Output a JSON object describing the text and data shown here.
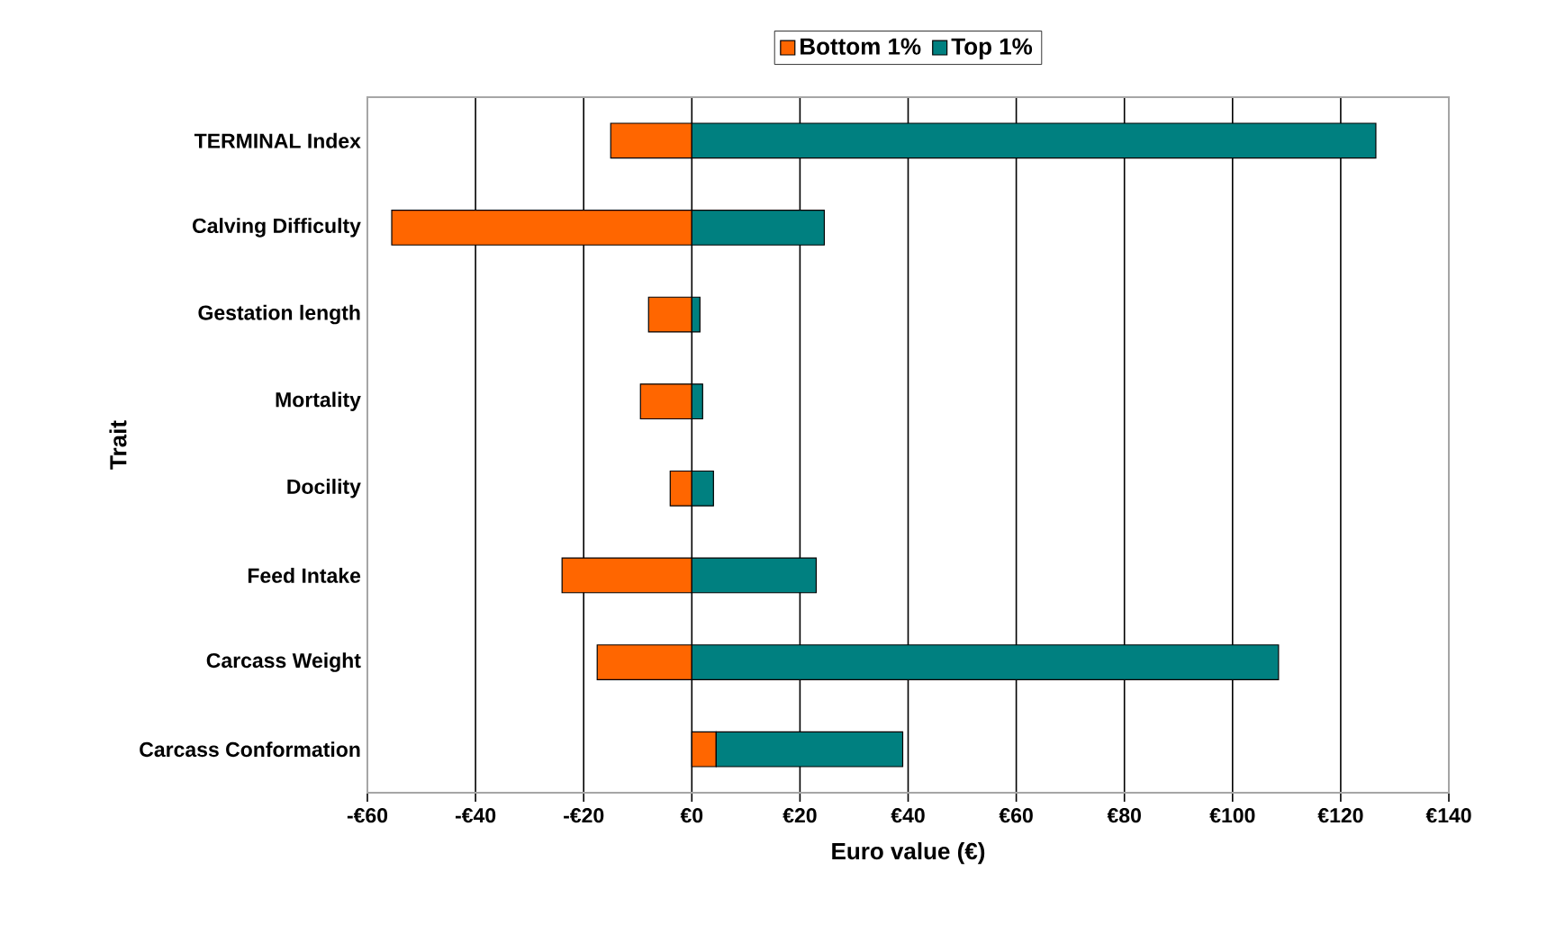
{
  "chart_data": {
    "type": "bar",
    "orientation": "horizontal",
    "stacked": true,
    "categories": [
      "TERMINAL Index",
      "Calving Difficulty",
      "Gestation length",
      "Mortality",
      "Docility",
      "Feed Intake",
      "Carcass Weight",
      "Carcass Conformation"
    ],
    "series": [
      {
        "name": "Bottom 1%",
        "color": "#ff6600",
        "values": [
          -15,
          -55.5,
          -8,
          -9.5,
          -4,
          -24,
          -17.5,
          4.5
        ]
      },
      {
        "name": "Top 1%",
        "color": "#008080",
        "values": [
          126.5,
          24.5,
          1.5,
          2,
          4,
          23,
          108.5,
          34.5
        ]
      }
    ],
    "xlabel": "Euro value (€)",
    "ylabel": "Trait",
    "xlim": [
      -60,
      140
    ],
    "xticks": [
      {
        "value": -60,
        "label": "-€60"
      },
      {
        "value": -40,
        "label": "-€40"
      },
      {
        "value": -20,
        "label": "-€20"
      },
      {
        "value": 0,
        "label": "€0"
      },
      {
        "value": 20,
        "label": "€20"
      },
      {
        "value": 40,
        "label": "€40"
      },
      {
        "value": 60,
        "label": "€60"
      },
      {
        "value": 80,
        "label": "€80"
      },
      {
        "value": 100,
        "label": "€100"
      },
      {
        "value": 120,
        "label": "€120"
      },
      {
        "value": 140,
        "label": "€140"
      }
    ],
    "grid": "x",
    "legend": "top"
  }
}
